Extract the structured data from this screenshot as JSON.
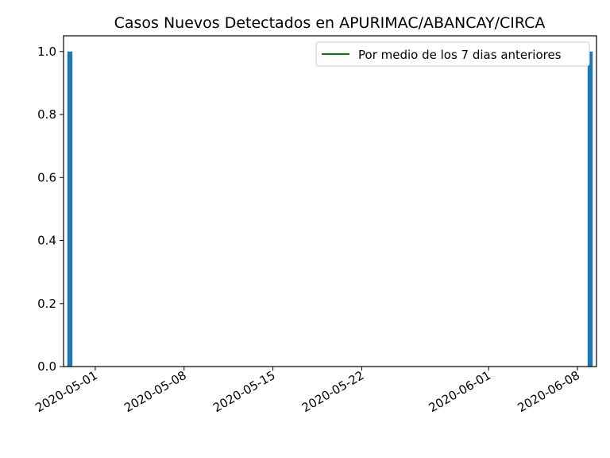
{
  "chart_data": {
    "type": "bar",
    "title": "Casos Nuevos Detectados en APURIMAC/ABANCAY/CIRCA",
    "xlabel": "",
    "ylabel": "",
    "x_range": [
      "2020-04-29",
      "2020-06-09"
    ],
    "ylim": [
      0,
      1.05
    ],
    "x_ticks": [
      "2020-05-01",
      "2020-05-08",
      "2020-05-15",
      "2020-05-22",
      "2020-06-01",
      "2020-06-08"
    ],
    "y_ticks": [
      0.0,
      0.2,
      0.4,
      0.6,
      0.8,
      1.0
    ],
    "grid": false,
    "legend_position": "top-right",
    "bars": {
      "color": "#1f77b4",
      "points": [
        {
          "date": "2020-04-29",
          "value": 1.0
        },
        {
          "date": "2020-06-09",
          "value": 1.0
        }
      ]
    },
    "line_series": {
      "name": "Por medio de los 7 dias anteriores",
      "color": "#008000",
      "points": []
    }
  }
}
